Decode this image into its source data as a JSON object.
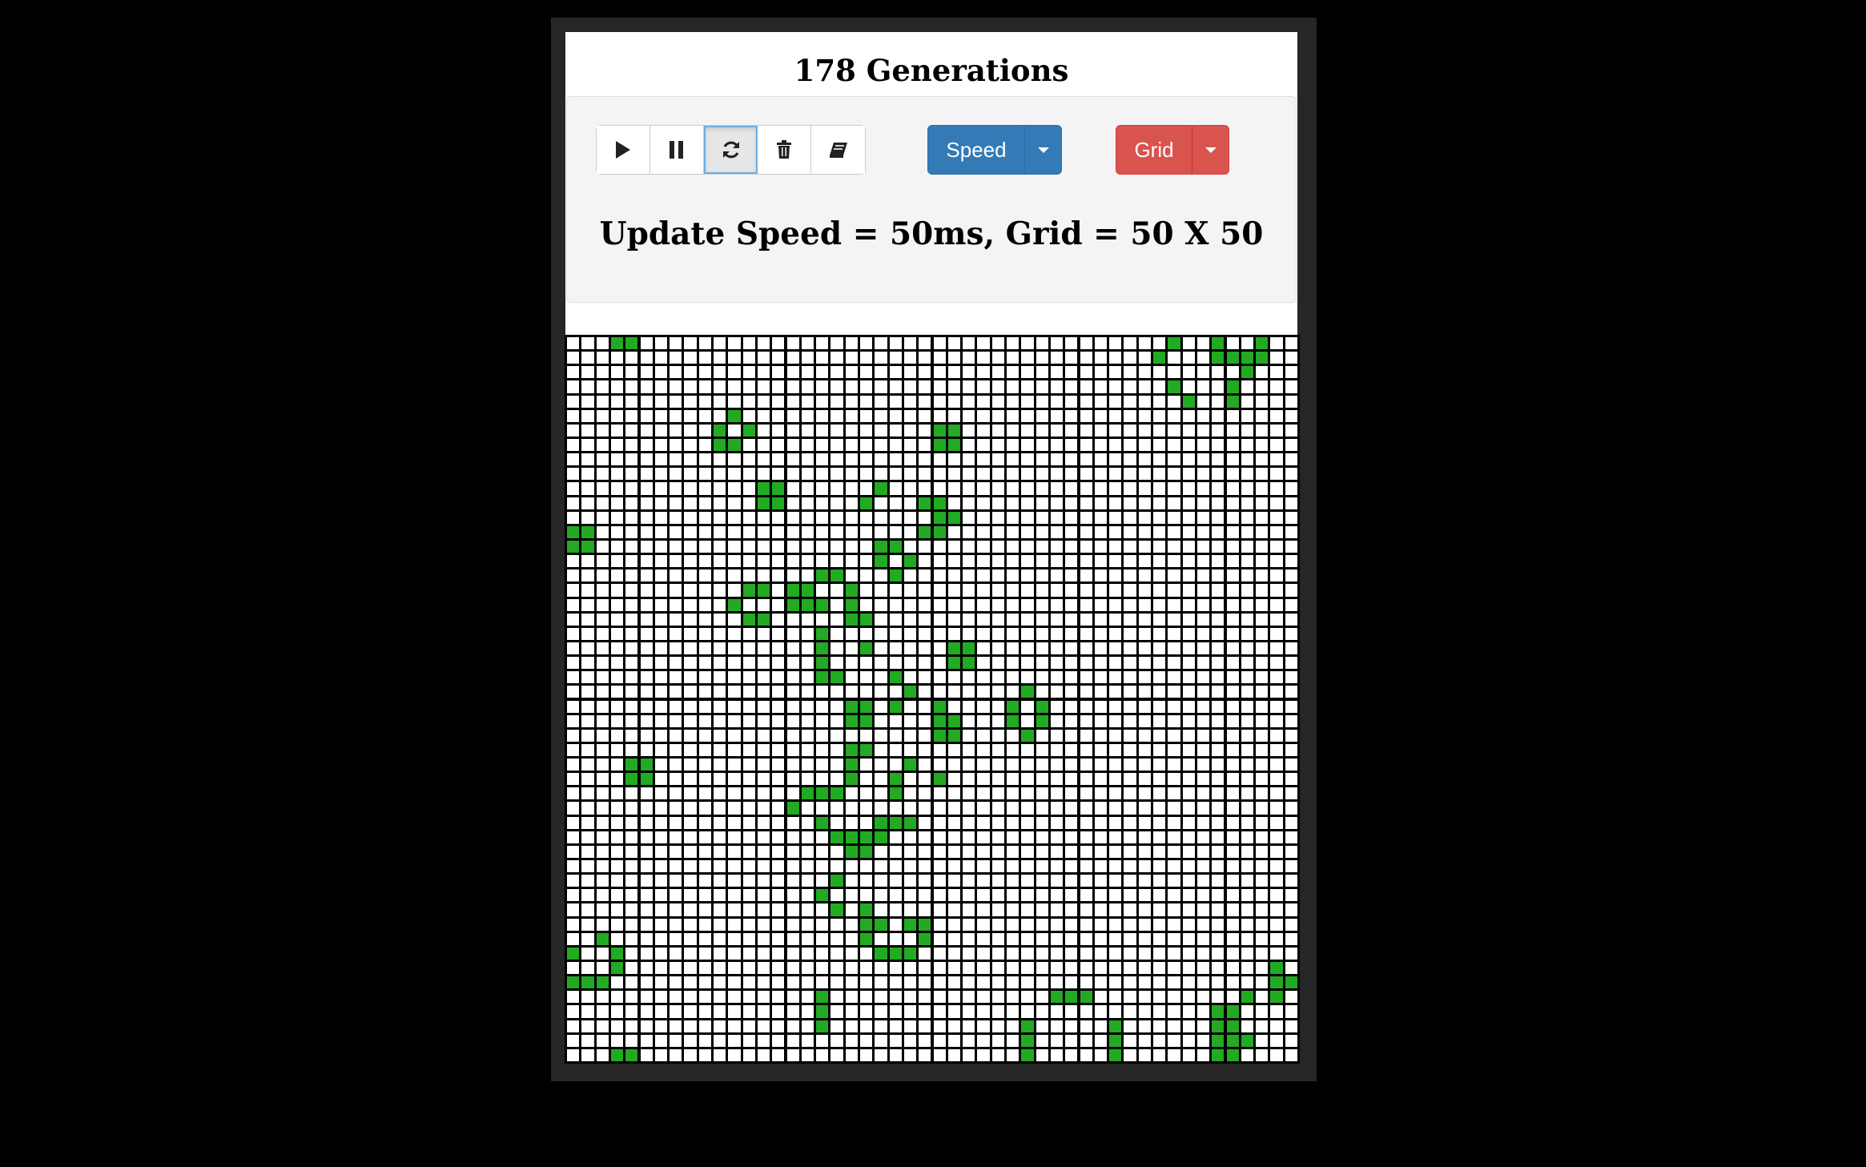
{
  "header": {
    "generations": "178 Generations"
  },
  "toolbar": {
    "buttons": [
      {
        "name": "play-button",
        "icon": "play-icon"
      },
      {
        "name": "pause-button",
        "icon": "pause-icon"
      },
      {
        "name": "refresh-button",
        "icon": "refresh-icon",
        "active": true
      },
      {
        "name": "clear-button",
        "icon": "trash-icon"
      },
      {
        "name": "eraser-button",
        "icon": "eraser-icon"
      }
    ],
    "speed_label": "Speed",
    "grid_label": "Grid"
  },
  "status": {
    "text": "Update Speed = 50ms, Grid = 50 X 50"
  },
  "colors": {
    "alive": "#22aa22",
    "dead": "#ffffff",
    "speed": "#337ab7",
    "grid": "#d9534f"
  },
  "board": {
    "rows": 50,
    "cols": 50,
    "alive": [
      [
        0,
        3
      ],
      [
        0,
        4
      ],
      [
        0,
        41
      ],
      [
        0,
        44
      ],
      [
        0,
        47
      ],
      [
        1,
        40
      ],
      [
        1,
        44
      ],
      [
        1,
        45
      ],
      [
        1,
        46
      ],
      [
        1,
        47
      ],
      [
        2,
        46
      ],
      [
        3,
        41
      ],
      [
        3,
        45
      ],
      [
        4,
        42
      ],
      [
        4,
        45
      ],
      [
        5,
        11
      ],
      [
        6,
        10
      ],
      [
        6,
        12
      ],
      [
        6,
        25
      ],
      [
        6,
        26
      ],
      [
        7,
        10
      ],
      [
        7,
        11
      ],
      [
        7,
        25
      ],
      [
        7,
        26
      ],
      [
        10,
        13
      ],
      [
        10,
        14
      ],
      [
        10,
        21
      ],
      [
        11,
        13
      ],
      [
        11,
        14
      ],
      [
        11,
        20
      ],
      [
        11,
        24
      ],
      [
        11,
        25
      ],
      [
        12,
        25
      ],
      [
        12,
        26
      ],
      [
        13,
        0
      ],
      [
        13,
        1
      ],
      [
        13,
        24
      ],
      [
        13,
        25
      ],
      [
        14,
        0
      ],
      [
        14,
        1
      ],
      [
        14,
        21
      ],
      [
        14,
        22
      ],
      [
        15,
        21
      ],
      [
        15,
        23
      ],
      [
        16,
        17
      ],
      [
        16,
        18
      ],
      [
        16,
        22
      ],
      [
        17,
        12
      ],
      [
        17,
        13
      ],
      [
        17,
        15
      ],
      [
        17,
        16
      ],
      [
        17,
        19
      ],
      [
        18,
        11
      ],
      [
        18,
        15
      ],
      [
        18,
        16
      ],
      [
        18,
        17
      ],
      [
        18,
        19
      ],
      [
        19,
        12
      ],
      [
        19,
        13
      ],
      [
        19,
        19
      ],
      [
        19,
        20
      ],
      [
        20,
        17
      ],
      [
        21,
        17
      ],
      [
        21,
        20
      ],
      [
        21,
        26
      ],
      [
        21,
        27
      ],
      [
        22,
        17
      ],
      [
        22,
        26
      ],
      [
        22,
        27
      ],
      [
        23,
        17
      ],
      [
        23,
        18
      ],
      [
        23,
        22
      ],
      [
        24,
        23
      ],
      [
        24,
        31
      ],
      [
        25,
        19
      ],
      [
        25,
        20
      ],
      [
        25,
        22
      ],
      [
        25,
        25
      ],
      [
        25,
        30
      ],
      [
        25,
        32
      ],
      [
        26,
        19
      ],
      [
        26,
        20
      ],
      [
        26,
        25
      ],
      [
        26,
        26
      ],
      [
        26,
        30
      ],
      [
        26,
        32
      ],
      [
        27,
        25
      ],
      [
        27,
        26
      ],
      [
        27,
        31
      ],
      [
        28,
        19
      ],
      [
        28,
        20
      ],
      [
        29,
        4
      ],
      [
        29,
        5
      ],
      [
        29,
        19
      ],
      [
        29,
        23
      ],
      [
        30,
        4
      ],
      [
        30,
        5
      ],
      [
        30,
        19
      ],
      [
        30,
        22
      ],
      [
        30,
        25
      ],
      [
        31,
        16
      ],
      [
        31,
        17
      ],
      [
        31,
        18
      ],
      [
        31,
        22
      ],
      [
        32,
        15
      ],
      [
        33,
        17
      ],
      [
        33,
        21
      ],
      [
        33,
        22
      ],
      [
        33,
        23
      ],
      [
        34,
        18
      ],
      [
        34,
        19
      ],
      [
        34,
        20
      ],
      [
        34,
        21
      ],
      [
        35,
        19
      ],
      [
        35,
        20
      ],
      [
        37,
        18
      ],
      [
        38,
        17
      ],
      [
        39,
        18
      ],
      [
        39,
        20
      ],
      [
        40,
        20
      ],
      [
        40,
        21
      ],
      [
        40,
        23
      ],
      [
        40,
        24
      ],
      [
        41,
        2
      ],
      [
        41,
        20
      ],
      [
        41,
        24
      ],
      [
        42,
        0
      ],
      [
        42,
        3
      ],
      [
        42,
        21
      ],
      [
        42,
        22
      ],
      [
        42,
        23
      ],
      [
        43,
        3
      ],
      [
        43,
        48
      ],
      [
        44,
        0
      ],
      [
        44,
        1
      ],
      [
        44,
        2
      ],
      [
        44,
        48
      ],
      [
        44,
        49
      ],
      [
        45,
        17
      ],
      [
        45,
        33
      ],
      [
        45,
        34
      ],
      [
        45,
        35
      ],
      [
        45,
        46
      ],
      [
        45,
        48
      ],
      [
        46,
        17
      ],
      [
        46,
        44
      ],
      [
        46,
        45
      ],
      [
        47,
        17
      ],
      [
        47,
        31
      ],
      [
        47,
        37
      ],
      [
        47,
        44
      ],
      [
        47,
        45
      ],
      [
        48,
        31
      ],
      [
        48,
        37
      ],
      [
        48,
        44
      ],
      [
        48,
        45
      ],
      [
        48,
        46
      ],
      [
        49,
        3
      ],
      [
        49,
        4
      ],
      [
        49,
        31
      ],
      [
        49,
        37
      ],
      [
        49,
        44
      ],
      [
        49,
        45
      ]
    ]
  }
}
